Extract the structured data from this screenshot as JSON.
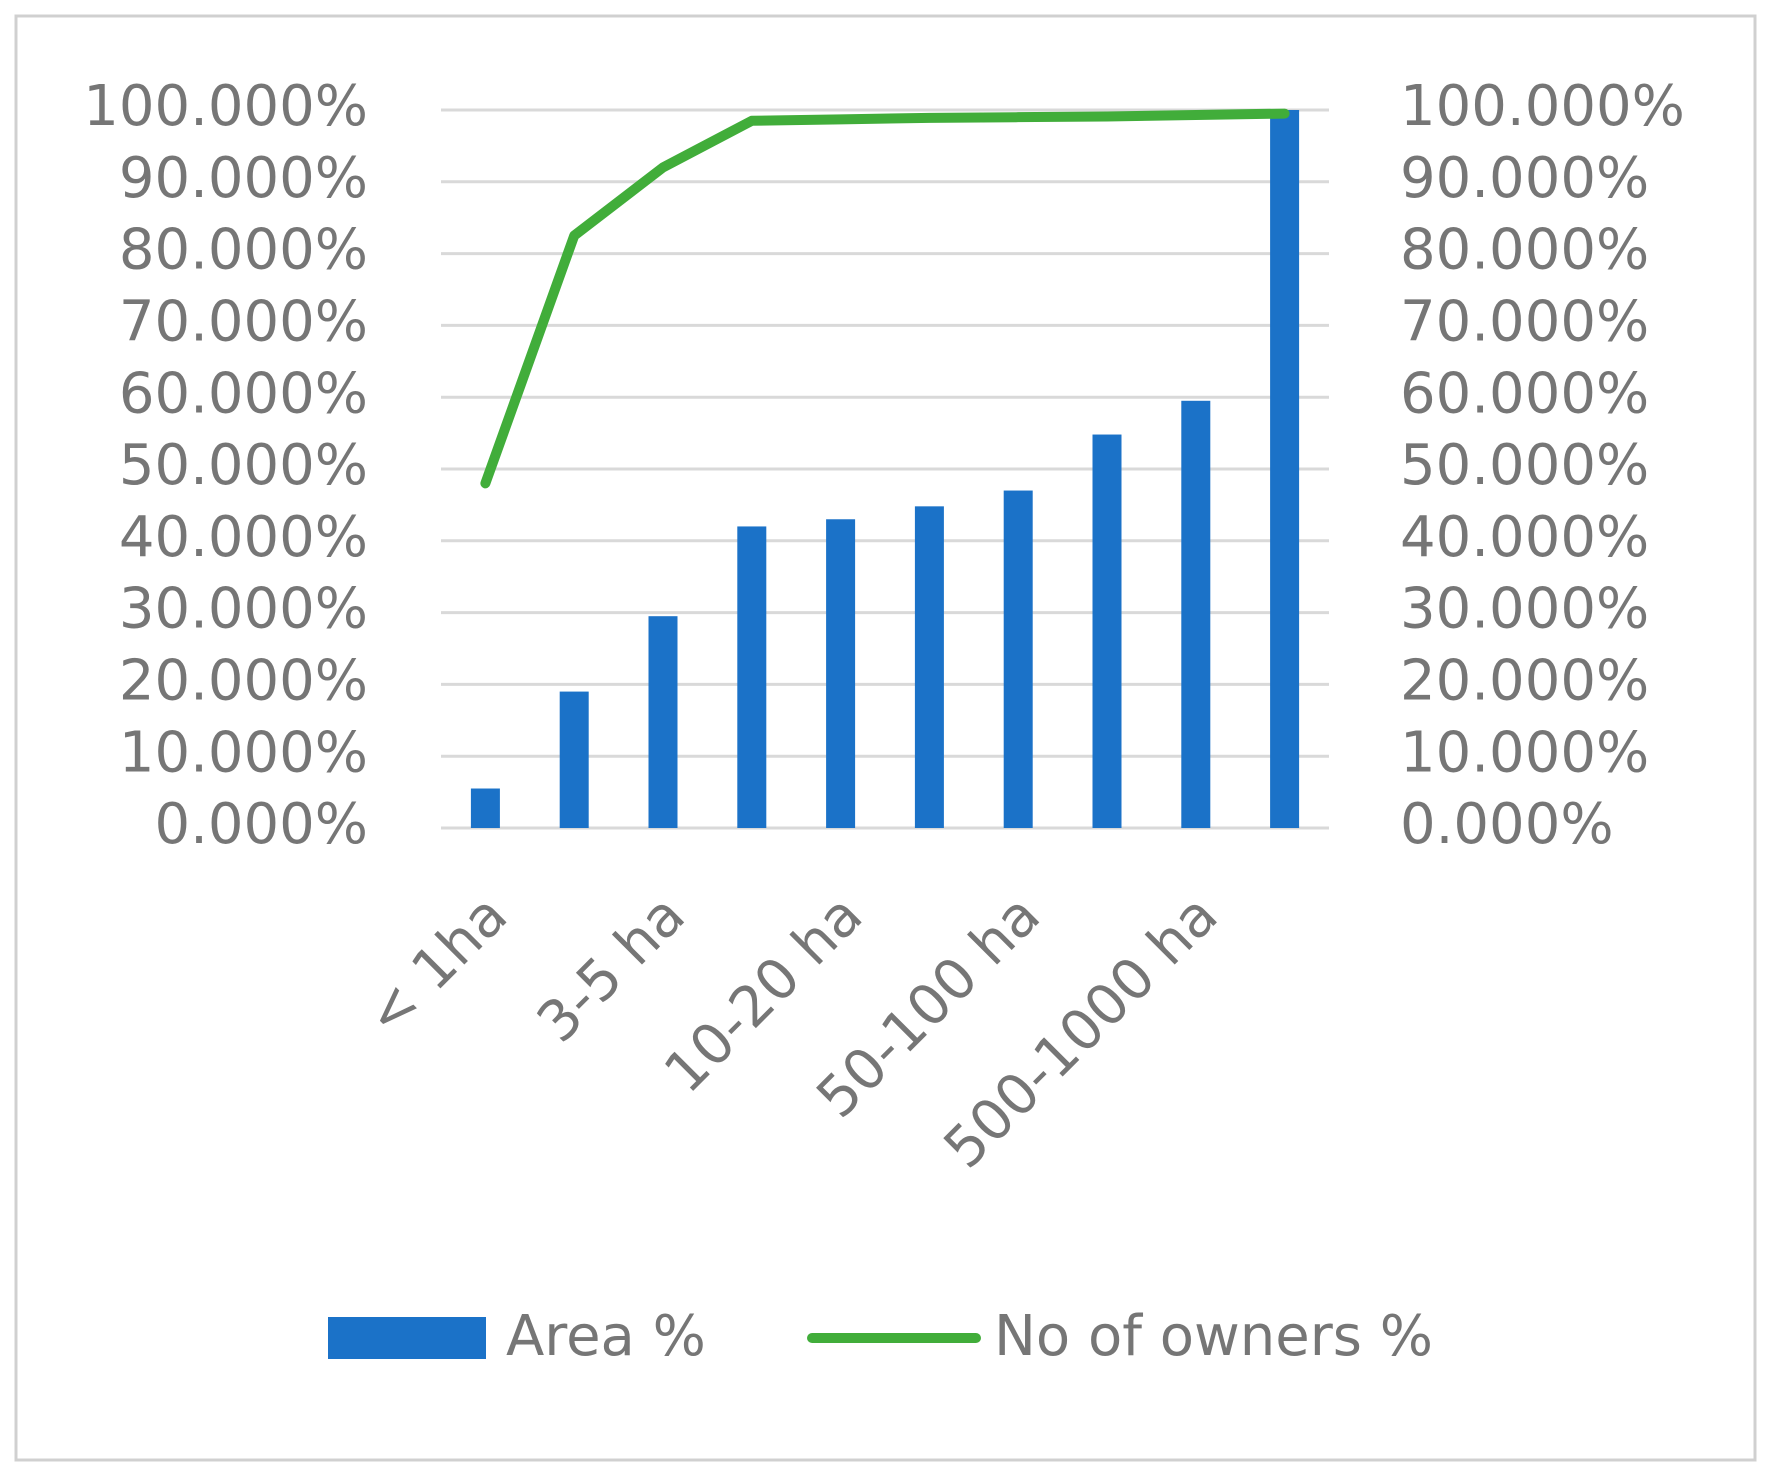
{
  "chart_data": {
    "type": "bar-line",
    "categories": [
      "< 1ha",
      null,
      "3-5 ha",
      null,
      "10-20 ha",
      null,
      "50-100 ha",
      null,
      "500-1000 ha",
      null
    ],
    "series": [
      {
        "name": "Area %",
        "type": "bar",
        "color": "#1b72c8",
        "values": [
          5.5,
          19,
          29.5,
          42,
          43,
          44.8,
          47,
          54.8,
          59.5,
          100
        ]
      },
      {
        "name": "No of owners %",
        "type": "line",
        "color": "#41ad3a",
        "axis": "y2",
        "values": [
          48,
          82.5,
          92,
          98.5,
          98.7,
          98.9,
          99,
          99.1,
          99.3,
          99.5
        ]
      }
    ],
    "ylim": [
      0,
      100
    ],
    "yticks": [
      {
        "value": 0,
        "label": "0.000%"
      },
      {
        "value": 10,
        "label": "10.000%"
      },
      {
        "value": 20,
        "label": "20.000%"
      },
      {
        "value": 30,
        "label": "30.000%"
      },
      {
        "value": 40,
        "label": "40.000%"
      },
      {
        "value": 50,
        "label": "50.000%"
      },
      {
        "value": 60,
        "label": "60.000%"
      },
      {
        "value": 70,
        "label": "70.000%"
      },
      {
        "value": 80,
        "label": "80.000%"
      },
      {
        "value": 90,
        "label": "90.000%"
      },
      {
        "value": 100,
        "label": "100.000%"
      }
    ],
    "y2lim": [
      0,
      100
    ],
    "y2ticks": [
      {
        "value": 0,
        "label": "0.000%"
      },
      {
        "value": 10,
        "label": "10.000%"
      },
      {
        "value": 20,
        "label": "20.000%"
      },
      {
        "value": 30,
        "label": "30.000%"
      },
      {
        "value": 40,
        "label": "40.000%"
      },
      {
        "value": 50,
        "label": "50.000%"
      },
      {
        "value": 60,
        "label": "60.000%"
      },
      {
        "value": 70,
        "label": "70.000%"
      },
      {
        "value": 80,
        "label": "80.000%"
      },
      {
        "value": 90,
        "label": "90.000%"
      },
      {
        "value": 100,
        "label": "100.000%"
      }
    ],
    "grid": true,
    "legend": "bottom"
  }
}
